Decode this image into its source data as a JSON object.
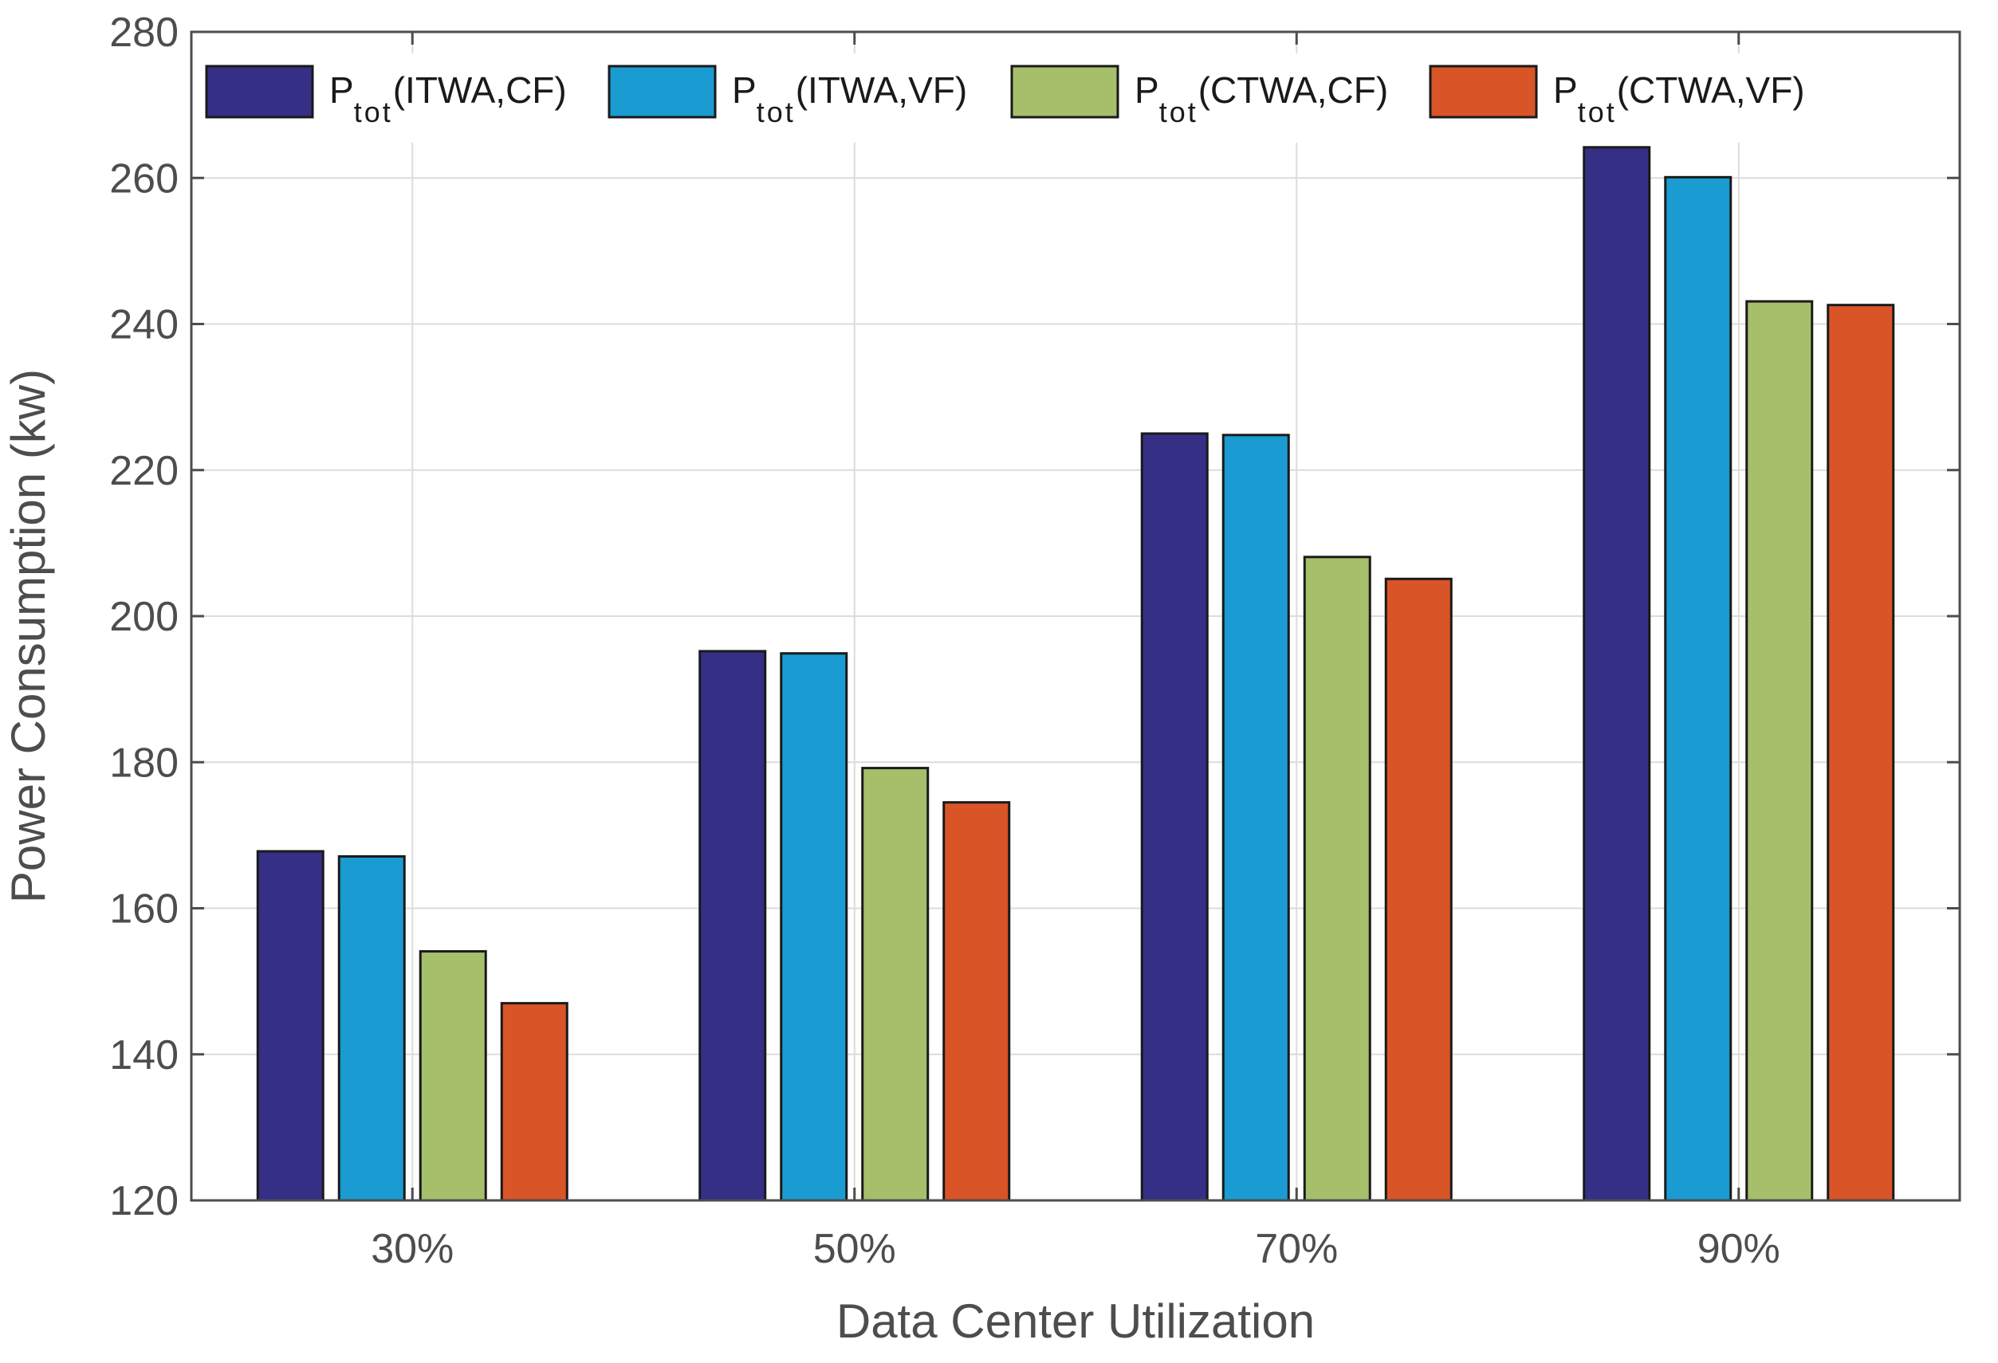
{
  "chart_data": {
    "type": "bar",
    "title": "",
    "xlabel": "Data Center Utilization",
    "ylabel": "Power Consumption (kw)",
    "ylim": [
      120,
      280
    ],
    "yticks": [
      120,
      140,
      160,
      180,
      200,
      220,
      240,
      260,
      280
    ],
    "grid": true,
    "legend_position": "top",
    "categories": [
      "30%",
      "50%",
      "70%",
      "90%"
    ],
    "series": [
      {
        "name": "Ptot(ITWA,CF)",
        "label_main": "P",
        "label_sub": "tot",
        "label_rest": "(ITWA,CF)",
        "color": "#352F86",
        "values": [
          167.8,
          195.2,
          225.0,
          264.2
        ]
      },
      {
        "name": "Ptot(ITWA,VF)",
        "label_main": "P",
        "label_sub": "tot",
        "label_rest": "(ITWA,VF)",
        "color": "#1A9BD1",
        "values": [
          167.1,
          194.9,
          224.8,
          260.1
        ]
      },
      {
        "name": "Ptot(CTWA,CF)",
        "label_main": "P",
        "label_sub": "tot",
        "label_rest": "(CTWA,CF)",
        "color": "#A5BF6A",
        "values": [
          154.1,
          179.2,
          208.1,
          243.1
        ]
      },
      {
        "name": "Ptot(CTWA,VF)",
        "label_main": "P",
        "label_sub": "tot",
        "label_rest": "(CTWA,VF)",
        "color": "#D95427",
        "values": [
          147.0,
          174.5,
          205.1,
          242.6
        ]
      }
    ]
  }
}
